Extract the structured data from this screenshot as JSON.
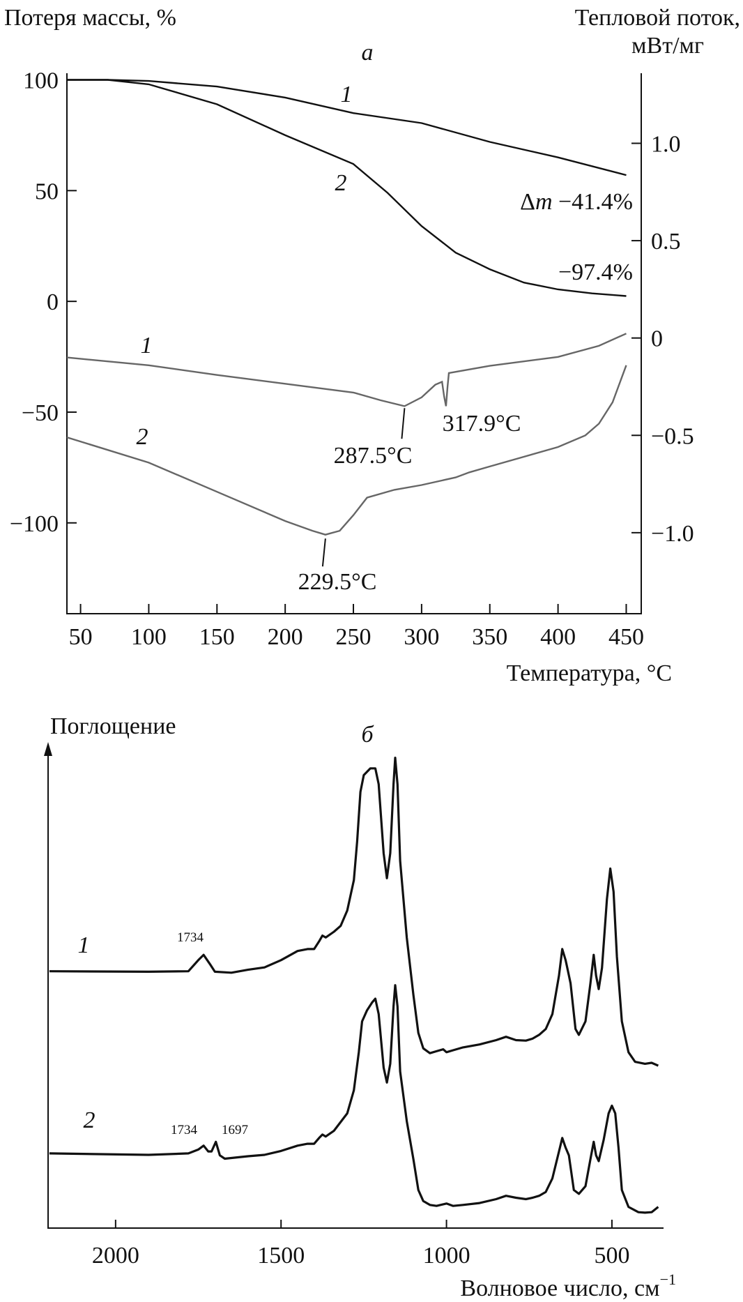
{
  "chart_data": [
    {
      "type": "line",
      "panel_label": "а",
      "title": "",
      "xlabel": "Температура, °C",
      "ylabel_left": "Потеря массы, %",
      "ylabel_right_line1": "Тепловой поток,",
      "ylabel_right_line2": "мВт/мг",
      "xlim": [
        40,
        461
      ],
      "ylim_left": [
        -141,
        103
      ],
      "ylim_right": [
        -1.416,
        1.36
      ],
      "xticks": [
        50,
        100,
        150,
        200,
        250,
        300,
        350,
        400,
        450
      ],
      "xtick_labels": [
        "50",
        "100",
        "150",
        "200",
        "250",
        "300",
        "350",
        "400",
        "450"
      ],
      "yticks_left": [
        100,
        50,
        0,
        -50,
        -100
      ],
      "ytick_labels_left": [
        "100",
        "50",
        "0",
        "−50",
        "−100"
      ],
      "yticks_right": [
        1.0,
        0.5,
        0,
        -0.5,
        -1.0
      ],
      "ytick_labels_right": [
        "1.0",
        "0.5",
        "0",
        "−0.5",
        "−1.0"
      ],
      "grid": false,
      "series": [
        {
          "name": "1",
          "kind": "TG",
          "axis": "left",
          "color": "#111111",
          "x": [
            40,
            70,
            100,
            150,
            200,
            250,
            300,
            350,
            400,
            450
          ],
          "y": [
            100,
            100,
            99.5,
            97,
            92,
            85,
            80.5,
            72,
            65,
            57
          ]
        },
        {
          "name": "2",
          "kind": "TG",
          "axis": "left",
          "color": "#111111",
          "x": [
            40,
            70,
            100,
            150,
            200,
            250,
            275,
            300,
            325,
            350,
            375,
            400,
            425,
            450
          ],
          "y": [
            100,
            100,
            98,
            89,
            75,
            62,
            49,
            34,
            22,
            14.5,
            8.5,
            5.4,
            3.6,
            2.4
          ]
        },
        {
          "name": "1",
          "kind": "DSC",
          "axis": "right",
          "color": "#666666",
          "x": [
            40,
            100,
            150,
            200,
            250,
            270,
            287.5,
            300,
            310,
            315,
            316.5,
            317.9,
            319,
            320,
            350,
            400,
            430,
            450
          ],
          "y": [
            -0.1,
            -0.14,
            -0.19,
            -0.235,
            -0.28,
            -0.32,
            -0.35,
            -0.305,
            -0.24,
            -0.225,
            -0.3,
            -0.35,
            -0.25,
            -0.18,
            -0.143,
            -0.097,
            -0.04,
            0.023
          ]
        },
        {
          "name": "2",
          "kind": "DSC",
          "axis": "right",
          "color": "#666666",
          "x": [
            40,
            100,
            150,
            200,
            220,
            229.5,
            240,
            250,
            260,
            280,
            300,
            325,
            335,
            350,
            400,
            420,
            430,
            440,
            450
          ],
          "y": [
            -0.51,
            -0.64,
            -0.79,
            -0.94,
            -0.99,
            -1.01,
            -0.99,
            -0.91,
            -0.82,
            -0.78,
            -0.755,
            -0.716,
            -0.69,
            -0.66,
            -0.56,
            -0.5,
            -0.44,
            -0.33,
            -0.14
          ]
        }
      ],
      "annotations": {
        "tg1_label": "1",
        "tg2_label": "2",
        "dsc1_label": "1",
        "dsc2_label": "2",
        "dm_symbol": "Δ",
        "dm_var": "m",
        "dm1": " −41.4%",
        "dm2": "−97.4%",
        "peak_287": "287.5°C",
        "peak_317": "317.9°C",
        "peak_229": "229.5°C"
      }
    },
    {
      "type": "line",
      "panel_label": "б",
      "title": "",
      "xlabel": "Волновое число, см",
      "xlabel_sup": "−1",
      "ylabel": "Поглощение",
      "xlim": [
        2204,
        344
      ],
      "ylim": [
        0,
        100
      ],
      "xticks": [
        2000,
        1500,
        1000,
        500
      ],
      "xtick_labels": [
        "2000",
        "1500",
        "1000",
        "500"
      ],
      "grid": false,
      "series": [
        {
          "name": "1",
          "color": "#111111",
          "x": [
            2200,
            1900,
            1780,
            1750,
            1734,
            1715,
            1700,
            1650,
            1600,
            1550,
            1500,
            1450,
            1420,
            1400,
            1385,
            1375,
            1365,
            1340,
            1320,
            1300,
            1280,
            1270,
            1260,
            1250,
            1230,
            1215,
            1205,
            1190,
            1180,
            1170,
            1160,
            1155,
            1148,
            1140,
            1120,
            1100,
            1085,
            1070,
            1050,
            1030,
            1010,
            1000,
            980,
            950,
            900,
            850,
            820,
            790,
            760,
            740,
            720,
            700,
            680,
            660,
            650,
            640,
            635,
            625,
            610,
            600,
            580,
            565,
            555,
            548,
            540,
            530,
            515,
            505,
            495,
            485,
            470,
            450,
            430,
            400,
            380,
            360
          ],
          "y": [
            53.3,
            53.2,
            53.3,
            55.6,
            56.7,
            54.8,
            53.2,
            53.0,
            53.6,
            54.1,
            55.6,
            57.5,
            57.9,
            57.9,
            59.5,
            60.7,
            60.3,
            61.5,
            62.7,
            65.9,
            72.2,
            80.2,
            90.5,
            94.0,
            95.4,
            95.4,
            92.1,
            77.8,
            72.6,
            77.8,
            92.1,
            97.6,
            92.1,
            76.2,
            60.3,
            48.4,
            40.5,
            37.3,
            36.3,
            36.7,
            37.1,
            36.5,
            36.9,
            37.5,
            38.1,
            39.0,
            39.7,
            39.0,
            38.9,
            39.3,
            40.1,
            41.3,
            44.4,
            52.4,
            57.9,
            55.6,
            54.0,
            50.8,
            41.3,
            40.1,
            42.9,
            50.8,
            56.7,
            52.4,
            49.6,
            54.0,
            68.3,
            74.6,
            69.8,
            56.3,
            42.9,
            36.5,
            34.5,
            34.1,
            34.3,
            33.7
          ]
        },
        {
          "name": "2",
          "color": "#111111",
          "x": [
            2200,
            1900,
            1780,
            1750,
            1734,
            1720,
            1710,
            1697,
            1685,
            1670,
            1600,
            1550,
            1500,
            1450,
            1420,
            1400,
            1385,
            1375,
            1365,
            1340,
            1300,
            1280,
            1265,
            1255,
            1240,
            1225,
            1215,
            1205,
            1190,
            1180,
            1170,
            1160,
            1155,
            1148,
            1140,
            1120,
            1100,
            1085,
            1070,
            1050,
            1030,
            1000,
            980,
            950,
            900,
            850,
            820,
            790,
            760,
            740,
            720,
            700,
            680,
            660,
            650,
            640,
            630,
            615,
            600,
            580,
            565,
            555,
            548,
            540,
            525,
            510,
            500,
            490,
            480,
            470,
            450,
            420,
            400,
            380,
            360
          ],
          "y": [
            15.5,
            15.2,
            15.5,
            16.3,
            17.1,
            15.9,
            15.9,
            17.9,
            15.1,
            14.4,
            14.9,
            15.2,
            16.0,
            17.1,
            17.5,
            17.5,
            18.7,
            19.4,
            19.0,
            20.2,
            23.8,
            28.6,
            36.5,
            42.9,
            45.2,
            46.8,
            47.6,
            44.4,
            33.3,
            30.2,
            34.1,
            46.0,
            50.4,
            46.0,
            32.5,
            22.2,
            14.3,
            7.9,
            5.6,
            4.8,
            4.6,
            5.1,
            4.6,
            4.8,
            5.2,
            6.0,
            6.7,
            6.3,
            6.0,
            6.3,
            6.7,
            7.5,
            10.3,
            15.9,
            18.7,
            16.7,
            15.1,
            7.9,
            7.1,
            8.7,
            14.3,
            17.9,
            15.1,
            13.9,
            18.3,
            23.8,
            25.4,
            23.8,
            16.7,
            7.9,
            4.4,
            3.3,
            3.2,
            3.3,
            4.4
          ]
        }
      ],
      "annotations": {
        "s1_label": "1",
        "s2_label": "2",
        "s1_peak": "1734",
        "s2_peak_a": "1734",
        "s2_peak_b": "1697"
      }
    }
  ]
}
